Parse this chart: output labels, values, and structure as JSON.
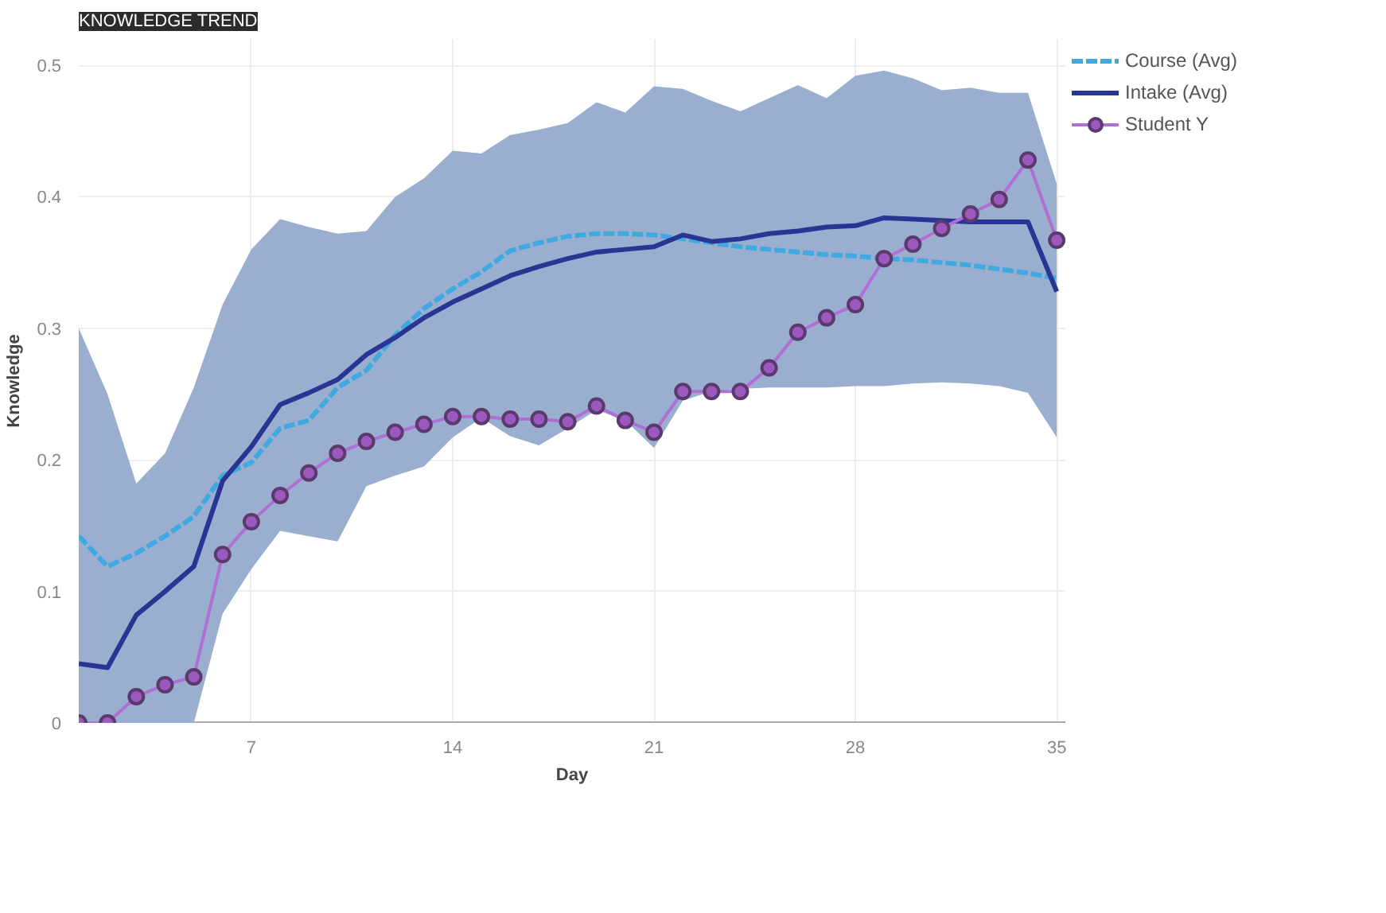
{
  "chart_data": {
    "type": "line",
    "title": "KNOWLEDGE TREND",
    "xlabel": "Day",
    "ylabel": "Knowledge",
    "x": [
      1,
      2,
      3,
      4,
      5,
      6,
      7,
      8,
      9,
      10,
      11,
      12,
      13,
      14,
      15,
      16,
      17,
      18,
      19,
      20,
      21,
      22,
      23,
      24,
      25,
      26,
      27,
      28,
      29,
      30,
      31,
      32,
      33,
      34,
      35
    ],
    "series": [
      {
        "name": "Course (Avg)",
        "color": "#3fa9e0",
        "line_style": "dashed",
        "marker": "none",
        "values": [
          0.142,
          0.119,
          0.129,
          0.142,
          0.157,
          0.188,
          0.198,
          0.224,
          0.23,
          0.255,
          0.268,
          0.295,
          0.315,
          0.33,
          0.343,
          0.359,
          0.365,
          0.37,
          0.372,
          0.372,
          0.371,
          0.368,
          0.365,
          0.362,
          0.36,
          0.358,
          0.356,
          0.355,
          0.353,
          0.352,
          0.35,
          0.348,
          0.345,
          0.342,
          0.338
        ]
      },
      {
        "name": "Intake (Avg)",
        "color": "#283593",
        "line_style": "solid",
        "marker": "none",
        "values": [
          0.045,
          0.042,
          0.082,
          0.1,
          0.119,
          0.184,
          0.21,
          0.242,
          0.251,
          0.261,
          0.28,
          0.293,
          0.308,
          0.32,
          0.33,
          0.34,
          0.347,
          0.353,
          0.358,
          0.36,
          0.362,
          0.371,
          0.366,
          0.368,
          0.372,
          0.374,
          0.377,
          0.378,
          0.384,
          0.383,
          0.382,
          0.381,
          0.381,
          0.381,
          0.328
        ],
        "lower": [
          0,
          0,
          0,
          0,
          0,
          0.083,
          0.117,
          0.146,
          0.142,
          0.138,
          0.18,
          0.188,
          0.195,
          0.217,
          0.232,
          0.218,
          0.211,
          0.224,
          0.238,
          0.23,
          0.209,
          0.245,
          0.252,
          0.254,
          0.255,
          0.255,
          0.255,
          0.256,
          0.256,
          0.258,
          0.259,
          0.258,
          0.256,
          0.251,
          0.217
        ],
        "upper": [
          0.3,
          0.25,
          0.182,
          0.205,
          0.255,
          0.318,
          0.36,
          0.383,
          0.377,
          0.372,
          0.374,
          0.4,
          0.414,
          0.435,
          0.433,
          0.447,
          0.451,
          0.456,
          0.472,
          0.464,
          0.484,
          0.482,
          0.473,
          0.465,
          0.475,
          0.485,
          0.475,
          0.492,
          0.496,
          0.49,
          0.481,
          0.483,
          0.479,
          0.479,
          0.41
        ]
      },
      {
        "name": "Student Y",
        "color": "#b06fd6",
        "line_style": "solid",
        "marker": "circle",
        "values": [
          0,
          0,
          0.02,
          0.029,
          0.035,
          0.128,
          0.153,
          0.173,
          0.19,
          0.205,
          0.214,
          0.221,
          0.227,
          0.233,
          0.233,
          0.231,
          0.231,
          0.229,
          0.241,
          0.23,
          0.221,
          0.252,
          0.252,
          0.252,
          0.27,
          0.297,
          0.308,
          0.318,
          0.353,
          0.364,
          0.376,
          0.387,
          0.398,
          0.428,
          0.367
        ]
      }
    ],
    "xlim": [
      1,
      35.3
    ],
    "ylim": [
      0,
      0.52
    ],
    "xticks": [
      7,
      14,
      21,
      28,
      35
    ],
    "yticks": [
      0,
      0.1,
      0.2,
      0.3,
      0.4,
      0.5
    ],
    "grid": true,
    "legend": "right"
  }
}
